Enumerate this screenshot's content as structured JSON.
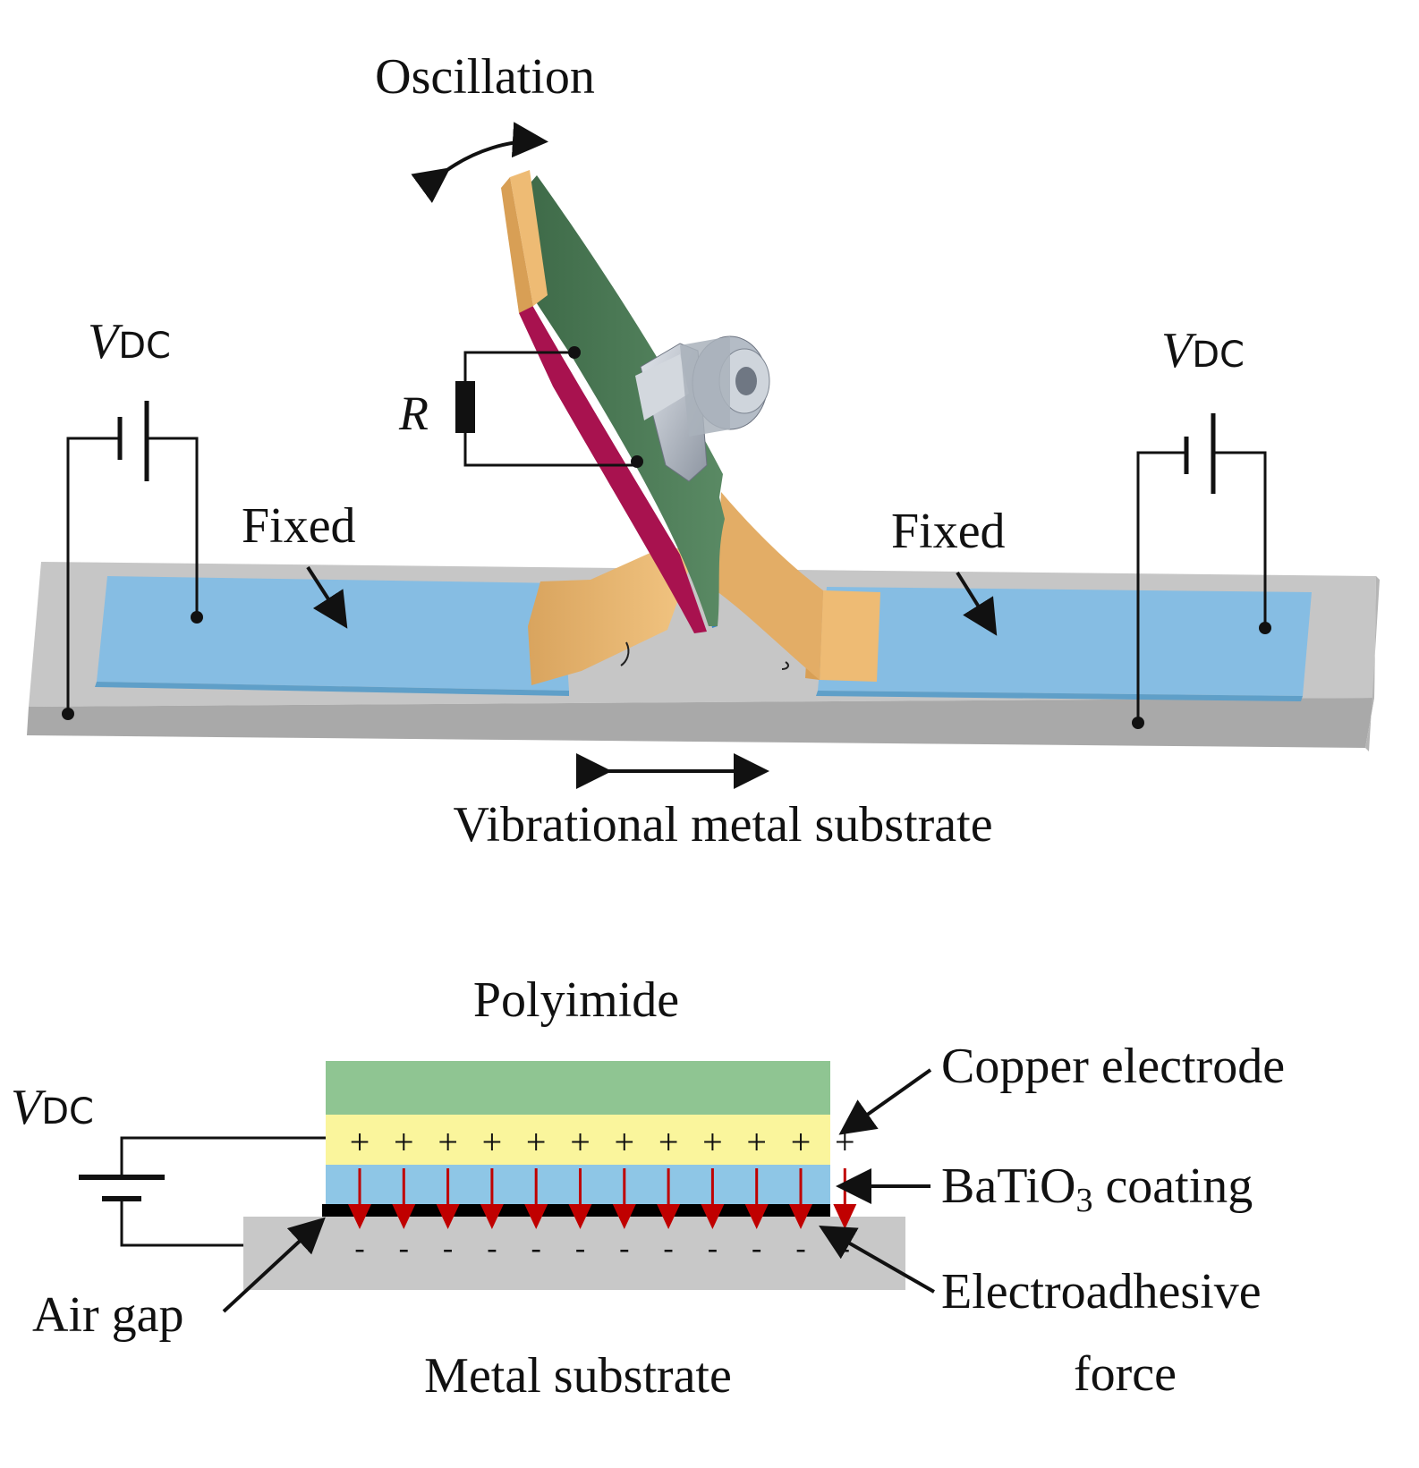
{
  "top_diagram": {
    "oscillation_label": "Oscillation",
    "resistor_label": "R",
    "fixed_left_label": "Fixed",
    "fixed_right_label": "Fixed",
    "vdc_main": "V",
    "vdc_sub": "DC",
    "substrate_label": "Vibrational metal substrate"
  },
  "bottom_diagram": {
    "polyimide_label": "Polyimide",
    "copper_label": "Copper electrode",
    "coating_main": "BaTiO",
    "coating_sub": "3",
    "coating_suffix": " coating",
    "force_label_line1": "Electroadhesive",
    "force_label_line2": "force",
    "air_gap_label": "Air gap",
    "metal_label": "Metal substrate",
    "vdc_main": "V",
    "vdc_sub": "DC",
    "plus_sign": "+",
    "minus_sign": "-"
  },
  "colors": {
    "tape_blue": "#86bde3",
    "substrate_gray": "#c8c8c8",
    "copper_tan": "#eebb74",
    "polyimide_green": "#4e7a57",
    "film_magenta": "#a8124f",
    "layer_green": "#8fc592",
    "layer_yellow": "#faf59c",
    "layer_blue": "#8ec6e6",
    "arrow_red": "#c00000"
  }
}
